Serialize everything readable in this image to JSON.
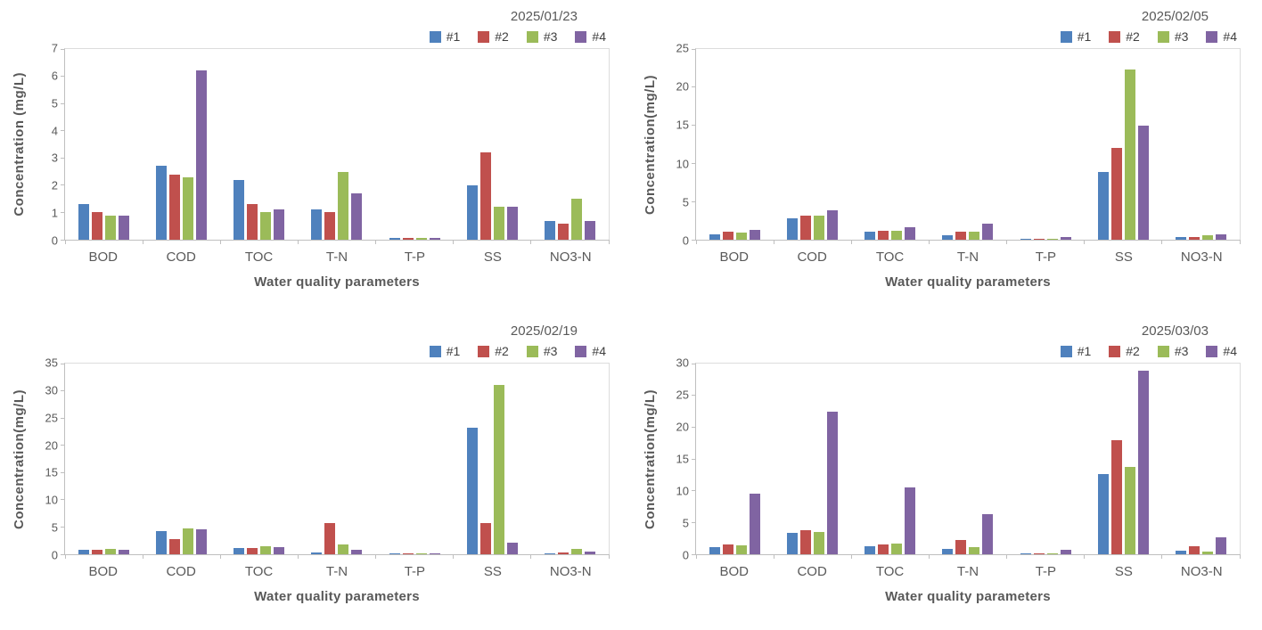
{
  "palette": {
    "s1": "#4F81BD",
    "s2": "#C0504D",
    "s3": "#9BBB59",
    "s4": "#8064A2",
    "axis_line": "#BFBFBF",
    "plot_border": "#DCDCDC",
    "text_gray": "#595959"
  },
  "chart_data": [
    {
      "type": "bar",
      "title": "2025/01/23",
      "xlabel": "Water quality parameters",
      "ylabel": "Concentration (mg/L)",
      "ymax": 7,
      "ystep": 1,
      "ylim": [
        0,
        7
      ],
      "grid": false,
      "legend_position": "top-right",
      "categories": [
        "BOD",
        "COD",
        "TOC",
        "T-N",
        "T-P",
        "SS",
        "NO3-N"
      ],
      "series": [
        {
          "name": "#1",
          "color": "#4F81BD",
          "values": [
            1.3,
            2.7,
            2.2,
            1.1,
            0.05,
            2.0,
            0.7
          ]
        },
        {
          "name": "#2",
          "color": "#C0504D",
          "values": [
            1.0,
            2.4,
            1.3,
            1.0,
            0.08,
            3.2,
            0.6
          ]
        },
        {
          "name": "#3",
          "color": "#9BBB59",
          "values": [
            0.9,
            2.3,
            1.0,
            2.5,
            0.05,
            1.2,
            1.5
          ]
        },
        {
          "name": "#4",
          "color": "#8064A2",
          "values": [
            0.9,
            6.2,
            1.1,
            1.7,
            0.05,
            1.2,
            0.7
          ]
        }
      ]
    },
    {
      "type": "bar",
      "title": "2025/02/05",
      "xlabel": "Water quality parameters",
      "ylabel": "Concentration(mg/L)",
      "ymax": 25,
      "ystep": 5,
      "ylim": [
        0,
        25
      ],
      "grid": false,
      "legend_position": "top-right",
      "categories": [
        "BOD",
        "COD",
        "TOC",
        "T-N",
        "T-P",
        "SS",
        "NO3-N"
      ],
      "series": [
        {
          "name": "#1",
          "color": "#4F81BD",
          "values": [
            0.7,
            2.8,
            1.0,
            0.6,
            0.15,
            8.9,
            0.4
          ]
        },
        {
          "name": "#2",
          "color": "#C0504D",
          "values": [
            1.0,
            3.2,
            1.2,
            1.0,
            0.15,
            12.0,
            0.35
          ]
        },
        {
          "name": "#3",
          "color": "#9BBB59",
          "values": [
            0.9,
            3.1,
            1.2,
            1.0,
            0.15,
            22.3,
            0.55
          ]
        },
        {
          "name": "#4",
          "color": "#8064A2",
          "values": [
            1.3,
            3.9,
            1.6,
            2.1,
            0.3,
            15.0,
            0.7
          ]
        }
      ]
    },
    {
      "type": "bar",
      "title": "2025/02/19",
      "xlabel": "Water quality parameters",
      "ylabel": "Concentration(mg/L)",
      "ymax": 35,
      "ystep": 5,
      "ylim": [
        0,
        35
      ],
      "grid": false,
      "legend_position": "top-right",
      "categories": [
        "BOD",
        "COD",
        "TOC",
        "T-N",
        "T-P",
        "SS",
        "NO3-N"
      ],
      "series": [
        {
          "name": "#1",
          "color": "#4F81BD",
          "values": [
            0.9,
            4.2,
            1.1,
            0.3,
            0.05,
            23.3,
            0.05
          ]
        },
        {
          "name": "#2",
          "color": "#C0504D",
          "values": [
            0.9,
            2.8,
            1.1,
            5.7,
            0.1,
            5.8,
            0.3
          ]
        },
        {
          "name": "#3",
          "color": "#9BBB59",
          "values": [
            1.0,
            4.7,
            1.4,
            1.8,
            0.05,
            31.0,
            1.0
          ]
        },
        {
          "name": "#4",
          "color": "#8064A2",
          "values": [
            0.9,
            4.6,
            1.3,
            0.9,
            0.05,
            2.2,
            0.45
          ]
        }
      ]
    },
    {
      "type": "bar",
      "title": "2025/03/03",
      "xlabel": "Water quality parameters",
      "ylabel": "Concentration(mg/L)",
      "ymax": 30,
      "ystep": 5,
      "ylim": [
        0,
        30
      ],
      "grid": false,
      "legend_position": "top-right",
      "categories": [
        "BOD",
        "COD",
        "TOC",
        "T-N",
        "T-P",
        "SS",
        "NO3-N"
      ],
      "series": [
        {
          "name": "#1",
          "color": "#4F81BD",
          "values": [
            1.1,
            3.3,
            1.2,
            0.8,
            0.2,
            12.6,
            0.5
          ]
        },
        {
          "name": "#2",
          "color": "#C0504D",
          "values": [
            1.5,
            3.8,
            1.6,
            2.2,
            0.2,
            18.0,
            1.3
          ]
        },
        {
          "name": "#3",
          "color": "#9BBB59",
          "values": [
            1.4,
            3.5,
            1.7,
            1.1,
            0.2,
            13.8,
            0.45
          ]
        },
        {
          "name": "#4",
          "color": "#8064A2",
          "values": [
            9.6,
            22.5,
            10.5,
            6.3,
            0.7,
            28.9,
            2.7
          ]
        }
      ]
    }
  ]
}
